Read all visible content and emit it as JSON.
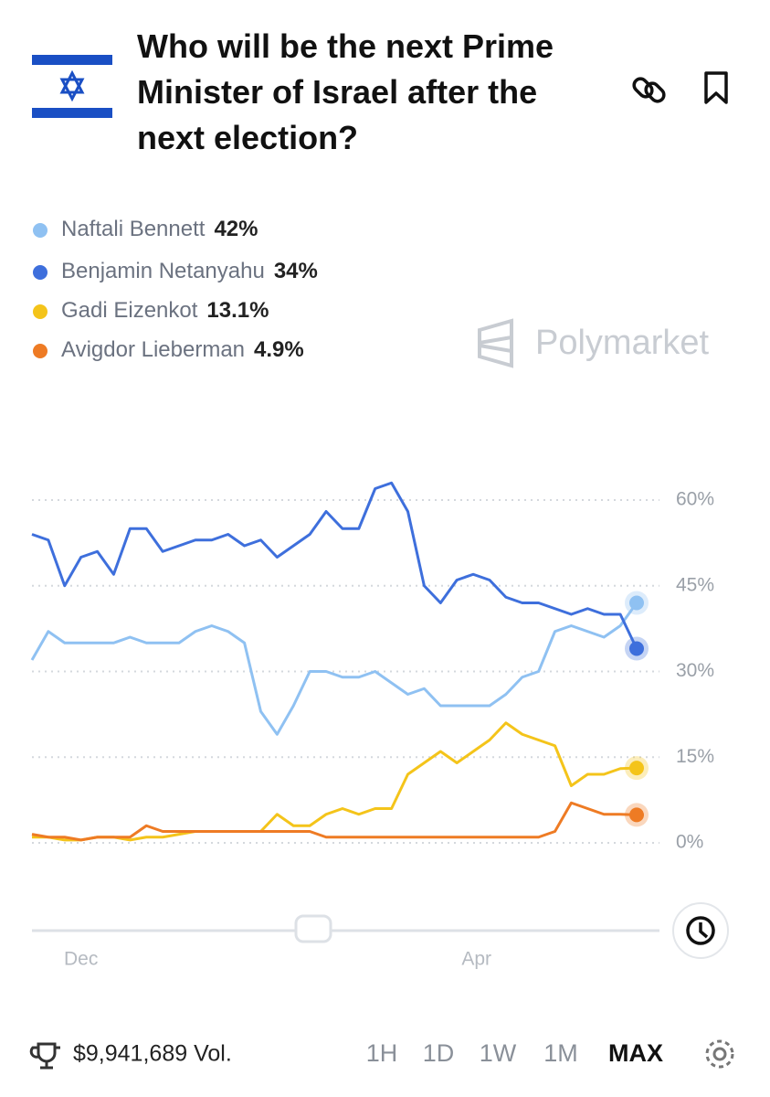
{
  "chart_data": {
    "type": "line",
    "title": "Who will be the next Prime Minister of Israel after the next election?",
    "x": [
      -15,
      -10,
      -5,
      0,
      5,
      10,
      15,
      20,
      25,
      30,
      35,
      40,
      45,
      50,
      55,
      60,
      65,
      70,
      75,
      80,
      85,
      90,
      95,
      100,
      105,
      110,
      115,
      120,
      125,
      130,
      135,
      140,
      145,
      150,
      155,
      160,
      165,
      170
    ],
    "xlim": [
      -15,
      170
    ],
    "xticks": [
      {
        "value": 0,
        "label": "Dec"
      },
      {
        "value": 121,
        "label": "Apr"
      }
    ],
    "ylim": [
      0,
      64
    ],
    "yticks": [
      {
        "value": 0,
        "label": "0%"
      },
      {
        "value": 15,
        "label": "15%"
      },
      {
        "value": 30,
        "label": "30%"
      },
      {
        "value": 45,
        "label": "45%"
      },
      {
        "value": 60,
        "label": "60%"
      }
    ],
    "grid": true,
    "series": [
      {
        "name": "Naftali Bennett",
        "color": "#8fc1f2",
        "values": [
          32,
          37,
          35,
          35,
          35,
          35,
          36,
          35,
          35,
          35,
          37,
          38,
          37,
          35,
          23,
          19,
          24,
          30,
          30,
          29,
          29,
          30,
          28,
          26,
          27,
          24,
          24,
          24,
          24,
          26,
          29,
          30,
          37,
          38,
          37,
          36,
          38,
          42
        ]
      },
      {
        "name": "Benjamin Netanyahu",
        "color": "#3e6fdc",
        "values": [
          54,
          53,
          45,
          50,
          51,
          47,
          55,
          55,
          51,
          52,
          53,
          53,
          54,
          52,
          53,
          50,
          52,
          54,
          58,
          55,
          55,
          62,
          63,
          58,
          45,
          42,
          46,
          47,
          46,
          43,
          42,
          42,
          41,
          40,
          41,
          40,
          40,
          34
        ]
      },
      {
        "name": "Gadi Eizenkot",
        "color": "#f4c41a",
        "values": [
          1,
          1,
          0.5,
          0.5,
          1,
          1,
          0.5,
          1,
          1,
          1.5,
          2,
          2,
          2,
          2,
          2,
          5,
          3,
          3,
          5,
          6,
          5,
          6,
          6,
          12,
          14,
          16,
          14,
          16,
          18,
          21,
          19,
          18,
          17,
          10,
          12,
          12,
          13,
          13.1
        ]
      },
      {
        "name": "Avigdor Lieberman",
        "color": "#ee7b24",
        "values": [
          1.5,
          1,
          1,
          0.5,
          1,
          1,
          1,
          3,
          2,
          2,
          2,
          2,
          2,
          2,
          2,
          2,
          2,
          2,
          1,
          1,
          1,
          1,
          1,
          1,
          1,
          1,
          1,
          1,
          1,
          1,
          1,
          1,
          2,
          7,
          6,
          5,
          5,
          4.9
        ]
      }
    ],
    "current_values": [
      42,
      34,
      13.1,
      4.9
    ],
    "current_value_labels": [
      "42%",
      "34%",
      "13.1%",
      "4.9%"
    ]
  },
  "brand": "Polymarket",
  "volume": "$9,941,689 Vol.",
  "ranges": [
    "1H",
    "1D",
    "1W",
    "1M",
    "MAX"
  ],
  "active_range": 4
}
